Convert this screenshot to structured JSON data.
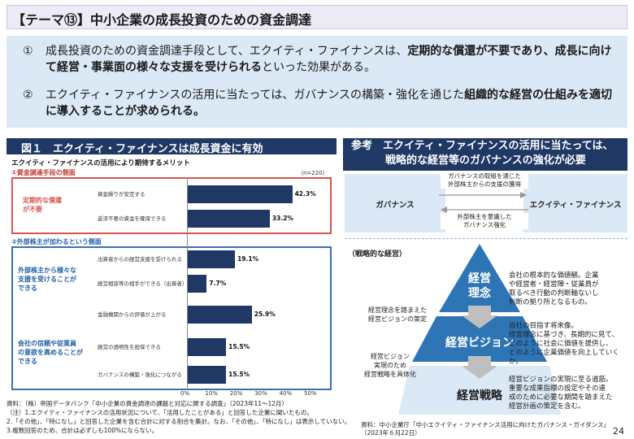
{
  "title": "【テーマ⑬】中小企業の成長投資のための資金調達",
  "points": [
    {
      "num": "①",
      "segments": [
        {
          "t": "成長投資のための資金調達手段として、エクイティ・ファイナンスは、",
          "b": false
        },
        {
          "t": "定期的な償還が不要であり、成長に向けて経営・事業面の様々な支援を受けられる",
          "b": true
        },
        {
          "t": "といった効果がある。",
          "b": false
        }
      ]
    },
    {
      "num": "②",
      "segments": [
        {
          "t": "エクイティ・ファイナンスの活用に当たっては、ガバナンスの構築・強化を通じた",
          "b": false
        },
        {
          "t": "組織的な経営の仕組みを適切に導入することが求められる。",
          "b": true
        }
      ]
    }
  ],
  "figure": {
    "header": "図１　エクイティ・ファイナンスは成長資金に有効",
    "subtitle": "エクイティ・ファイナンスの活用により期待するメリット",
    "n_label": "（n=220）",
    "section1": "①資金調達手段の側面",
    "section2": "②外部株主が加わるという側面",
    "group1": "定期的な償還\nが不要",
    "group2": "外部株主から様々な\n支援を受けることが\nできる",
    "group3": "会社の信頼や従業員\nの意欲を高めることが\nできる",
    "notes": [
      "資料：（株）帝国データバンク「中小企業の資金調達の課題と対応に関する調査」（2023年11～12月）",
      "（注）1.エクイティ・ファイナンスの活用状況について、「活用したことがある」と回答した企業に聞いたもの。",
      "2.「その他」、「特になし」と回答した企業を含む合計に対する割合を集計。なお、「その他」、「特になし」は表示していない。",
      "3.複数回答のため、合計は必ずしも100%にならない。"
    ]
  },
  "chart_data": {
    "type": "bar",
    "orientation": "horizontal",
    "categories": [
      "資金繰りが安定する",
      "返済不要の資金を確保できる",
      "出資者からの経営支援を受けられる",
      "経営相談等の相手ができる（出資者）",
      "金融機関からの評価が上がる",
      "経営の透明性を担保できる",
      "ガバナンスの構築・強化につながる"
    ],
    "values": [
      42.3,
      33.2,
      19.1,
      7.7,
      25.9,
      15.5,
      15.5
    ],
    "value_labels": [
      "42.3%",
      "33.2%",
      "19.1%",
      "7.7%",
      "25.9%",
      "15.5%",
      "15.5%"
    ],
    "xlim": [
      0,
      50
    ],
    "xticks": [
      "0%",
      "10%",
      "20%",
      "30%",
      "40%",
      "50%"
    ],
    "bar_color": "#1f3864"
  },
  "reference": {
    "header_line1": "参考　エクイティ・ファイナンスの活用に当たっては、",
    "header_line2": "戦略的な経営等のガバナンスの強化が必要",
    "governance": "ガバナンス",
    "equity": "エクイティ・ファイナンス",
    "arrow_top": "ガバナンスの取組を通じた\n外部株主からの支援の獲得",
    "arrow_bottom": "外部株主を意識した\nガバナンス強化",
    "strategic_label": "（戦略的な経営）",
    "tiers": [
      "経営\n理念",
      "経営ビジョン",
      "経営戦略"
    ],
    "side_texts": [
      "会社の根本的な価値観。企業\nや経営者・経営陣・従業員が\n取るべき行動の判断軸ないし\n判断の拠り所となるもの。",
      "自社の目指す将来像。\n経営理念に基づき、長期的に見て、\nどのように社会に価値を提供し、\nどのように企業価値を向上していくか。",
      "経営ビジョンの実現に至る道筋。\n重要な成果指標の設定やその達\n成のために必要な期間を踏まえた\n経営計画の策定を含む。"
    ],
    "left_texts": [
      "経営理念を踏まえた\n経営ビジョンの策定",
      "経営ビジョン\n実現のため\n経営戦略を具体化"
    ],
    "source": "資料：中小企業庁「中小エクイティ・ファイナンス活用に向けたガバナンス・ガイダンス」\n（2023年６月22日）"
  },
  "page_number": "24"
}
